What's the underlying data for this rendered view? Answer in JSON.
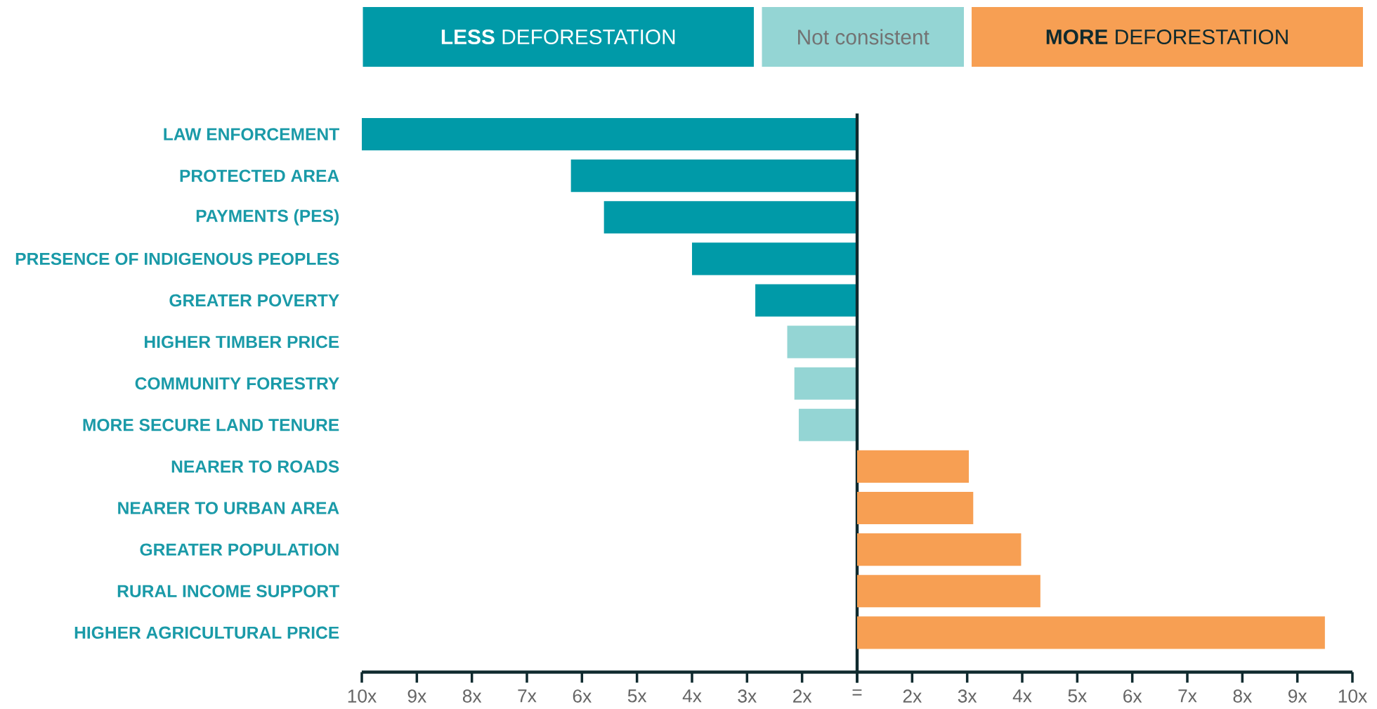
{
  "chart_data": [
    {
      "type": "bar",
      "orientation": "horizontal",
      "legend": "top",
      "categories": [
        "LAW ENFORCEMENT",
        "PROTECTED AREA",
        "PAYMENTS (PES)",
        "PRESENCE OF INDIGENOUS PEOPLES",
        "GREATER POVERTY",
        "HIGHER TIMBER PRICE",
        "COMMUNITY FORESTRY",
        "MORE SECURE LAND TENURE",
        "NEARER TO ROADS",
        "NEARER TO URBAN AREA",
        "GREATER POPULATION",
        "RURAL INCOME SUPPORT",
        "HIGHER AGRICULTURAL PRICE"
      ],
      "series": [
        {
          "name": "**LESS** DEFORESTATION",
          "color": "#009aa8",
          "values": [
            10,
            6.2,
            5.6,
            4.0,
            2.85,
            null,
            null,
            null,
            null,
            null,
            null,
            null,
            null
          ]
        },
        {
          "name": "Not consistent",
          "color": "#94d5d4",
          "values": [
            null,
            null,
            null,
            null,
            null,
            2.27,
            2.14,
            2.06,
            null,
            null,
            null,
            null,
            null
          ]
        }
      ],
      "xlim": [
        10,
        1
      ],
      "xticks": [
        {
          "value": 10,
          "label": "10x"
        },
        {
          "value": 9,
          "label": "9x"
        },
        {
          "value": 8,
          "label": "8x"
        },
        {
          "value": 7,
          "label": "7x"
        },
        {
          "value": 6,
          "label": "6x"
        },
        {
          "value": 5,
          "label": "5x"
        },
        {
          "value": 4,
          "label": "4x"
        },
        {
          "value": 3,
          "label": "3x"
        },
        {
          "value": 2,
          "label": "2x"
        },
        {
          "value": 1,
          "label": "="
        }
      ]
    },
    {
      "type": "bar",
      "orientation": "horizontal",
      "legend": "top",
      "tick_labels": "x",
      "categories": [
        null,
        null,
        null,
        null,
        null,
        null,
        null,
        null,
        null,
        null,
        null,
        null,
        null
      ],
      "series": [
        {
          "name": "**MORE** DEFORESTATION",
          "color": "#f79f53",
          "values": [
            null,
            null,
            null,
            null,
            null,
            null,
            null,
            null,
            3.03,
            3.11,
            3.98,
            4.33,
            9.5
          ]
        }
      ],
      "xlim": [
        1,
        10
      ],
      "xticks": [
        {
          "value": 1,
          "label": null
        },
        {
          "value": 2,
          "label": "2x"
        },
        {
          "value": 3,
          "label": "3x"
        },
        {
          "value": 4,
          "label": "4x"
        },
        {
          "value": 5,
          "label": "5x"
        },
        {
          "value": 6,
          "label": "6x"
        },
        {
          "value": 7,
          "label": "7x"
        },
        {
          "value": 8,
          "label": "8x"
        },
        {
          "value": 9,
          "label": "9x"
        },
        {
          "value": 10,
          "label": "10x"
        }
      ]
    }
  ]
}
